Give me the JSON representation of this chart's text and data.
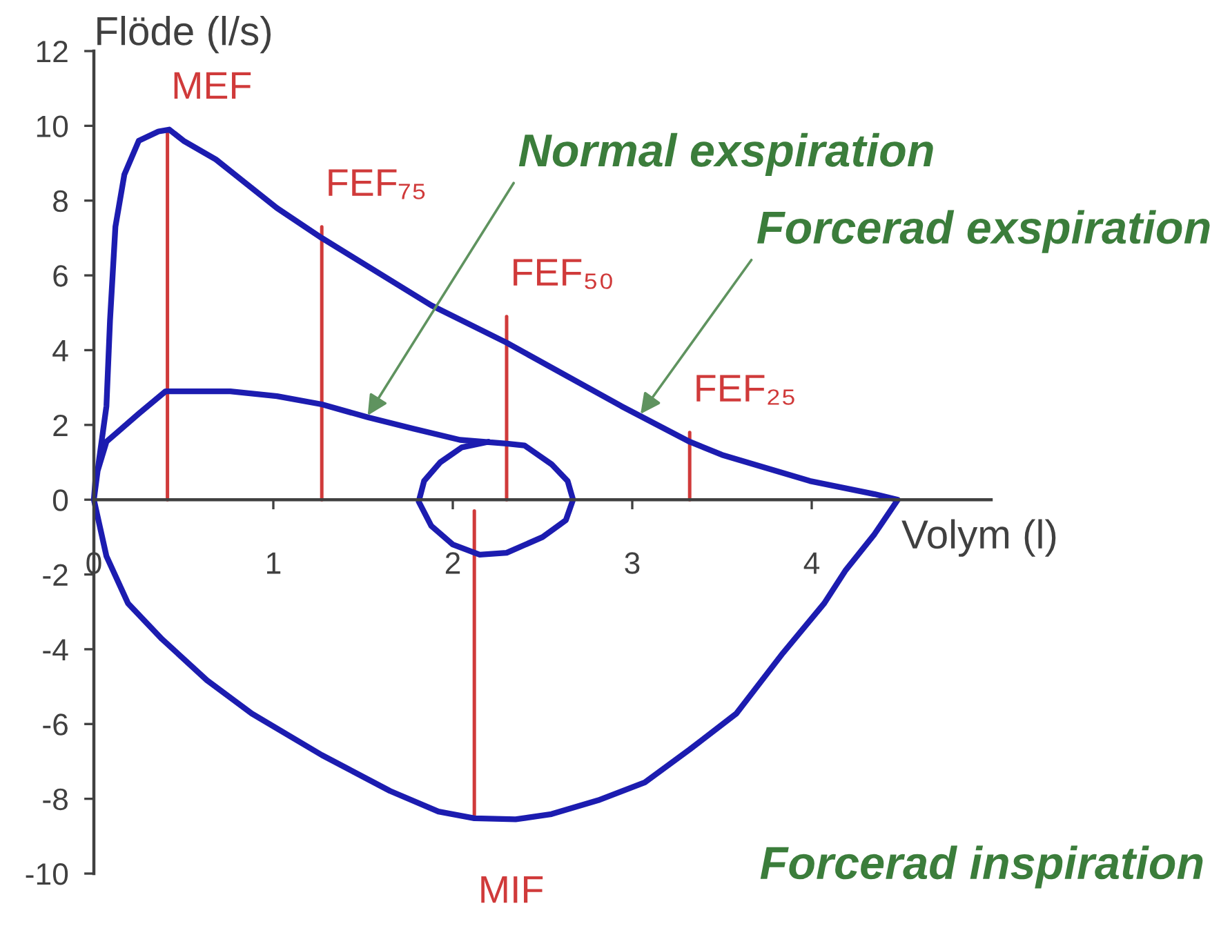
{
  "chart_data": {
    "type": "line",
    "xlabel": "Volym (l)",
    "ylabel": "Flöde (l/s)",
    "xlim": [
      0,
      5
    ],
    "xticks": [
      0,
      1,
      2,
      3,
      4
    ],
    "ylim": [
      -10,
      12
    ],
    "yticks": [
      -10,
      -8,
      -6,
      -4,
      -2,
      0,
      2,
      4,
      6,
      8,
      10,
      12
    ],
    "marker": "none",
    "line_style": "solid",
    "series": [
      {
        "name": "MEF",
        "color": "#d03a3a",
        "x": [
          0.41,
          0.41
        ],
        "values": [
          0,
          9.9
        ]
      },
      {
        "name": "FEF₇₅",
        "color": "#d03a3a",
        "x": [
          1.27,
          1.27
        ],
        "values": [
          0,
          7.3
        ]
      },
      {
        "name": "FEF₅₀",
        "color": "#d03a3a",
        "x": [
          2.3,
          2.3
        ],
        "values": [
          0,
          4.9
        ]
      },
      {
        "name": "FEF₂₅",
        "color": "#d03a3a",
        "x": [
          3.32,
          3.32
        ],
        "values": [
          0,
          1.8
        ]
      },
      {
        "name": "MIF",
        "color": "#d03a3a",
        "x": [
          2.12,
          2.12
        ],
        "values": [
          -0.3,
          -8.5
        ]
      },
      {
        "color": "#1c1cb0",
        "x": [
          2.2,
          2.05,
          1.93,
          1.84,
          1.81,
          1.88,
          2.0,
          2.15,
          2.3,
          2.5,
          2.63,
          2.67,
          2.64,
          2.55,
          2.4,
          2.3,
          2.04,
          1.78,
          1.53,
          1.27,
          1.02,
          0.76,
          0.4,
          0.25,
          0.13,
          0.07,
          0.01,
          0,
          0.03,
          0.07,
          0.09,
          0.12,
          0.17,
          0.25,
          0.36,
          0.42,
          0.5,
          0.68,
          1.02,
          1.27,
          1.88,
          2.3,
          2.94,
          3.32,
          3.5,
          3.99,
          4.35,
          4.48,
          4.35,
          4.19,
          4.07,
          3.84,
          3.58,
          3.32,
          3.07,
          2.81,
          2.55,
          2.35,
          2.12,
          1.92,
          1.65,
          1.27,
          0.88,
          0.63,
          0.38,
          0.19,
          0.07,
          0
        ],
        "values": [
          1.55,
          1.4,
          1.0,
          0.5,
          -0.05,
          -0.7,
          -1.2,
          -1.47,
          -1.42,
          -1.0,
          -0.55,
          0,
          0.5,
          0.95,
          1.45,
          1.5,
          1.6,
          1.9,
          2.2,
          2.55,
          2.77,
          2.9,
          2.9,
          2.3,
          1.8,
          1.55,
          0.6,
          0,
          1.1,
          2.5,
          4.8,
          7.3,
          8.7,
          9.6,
          9.85,
          9.9,
          9.6,
          9.1,
          7.8,
          7.0,
          5.2,
          4.2,
          2.5,
          1.55,
          1.2,
          0.5,
          0.15,
          0,
          -0.92,
          -1.88,
          -2.77,
          -4.1,
          -5.72,
          -6.68,
          -7.56,
          -8.04,
          -8.41,
          -8.55,
          -8.52,
          -8.34,
          -7.79,
          -6.83,
          -5.72,
          -4.83,
          -3.73,
          -2.77,
          -1.51,
          0
        ]
      }
    ],
    "annotations": [
      {
        "text": "Normal exspiration",
        "x": 1.52,
        "y": 2.21
      },
      {
        "text": "Forcerad exspiration",
        "x": 3.04,
        "y": 2.25
      },
      "Forcerad inspiration"
    ]
  }
}
